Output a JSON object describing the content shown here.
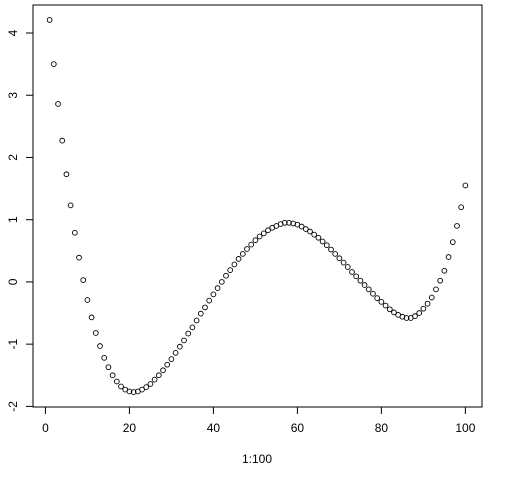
{
  "chart_data": {
    "type": "scatter",
    "xlabel": "1:100",
    "x": [
      1,
      2,
      3,
      4,
      5,
      6,
      7,
      8,
      9,
      10,
      11,
      12,
      13,
      14,
      15,
      16,
      17,
      18,
      19,
      20,
      21,
      22,
      23,
      24,
      25,
      26,
      27,
      28,
      29,
      30,
      31,
      32,
      33,
      34,
      35,
      36,
      37,
      38,
      39,
      40,
      41,
      42,
      43,
      44,
      45,
      46,
      47,
      48,
      49,
      50,
      51,
      52,
      53,
      54,
      55,
      56,
      57,
      58,
      59,
      60,
      61,
      62,
      63,
      64,
      65,
      66,
      67,
      68,
      69,
      70,
      71,
      72,
      73,
      74,
      75,
      76,
      77,
      78,
      79,
      80,
      81,
      82,
      83,
      84,
      85,
      86,
      87,
      88,
      89,
      90,
      91,
      92,
      93,
      94,
      95,
      96,
      97,
      98,
      99,
      100
    ],
    "values": [
      4.21,
      3.5,
      2.86,
      2.27,
      1.73,
      1.23,
      0.79,
      0.39,
      0.03,
      -0.29,
      -0.57,
      -0.82,
      -1.03,
      -1.22,
      -1.37,
      -1.5,
      -1.6,
      -1.68,
      -1.73,
      -1.76,
      -1.77,
      -1.76,
      -1.73,
      -1.69,
      -1.64,
      -1.57,
      -1.5,
      -1.42,
      -1.33,
      -1.24,
      -1.14,
      -1.04,
      -0.94,
      -0.83,
      -0.73,
      -0.62,
      -0.51,
      -0.41,
      -0.3,
      -0.2,
      -0.1,
      0.0,
      0.1,
      0.19,
      0.28,
      0.37,
      0.45,
      0.53,
      0.6,
      0.67,
      0.73,
      0.78,
      0.83,
      0.87,
      0.9,
      0.93,
      0.95,
      0.95,
      0.94,
      0.92,
      0.89,
      0.85,
      0.81,
      0.76,
      0.71,
      0.65,
      0.59,
      0.52,
      0.45,
      0.38,
      0.31,
      0.24,
      0.16,
      0.09,
      0.02,
      -0.05,
      -0.12,
      -0.19,
      -0.26,
      -0.32,
      -0.38,
      -0.44,
      -0.49,
      -0.53,
      -0.56,
      -0.58,
      -0.58,
      -0.55,
      -0.5,
      -0.43,
      -0.35,
      -0.25,
      -0.12,
      0.02,
      0.18,
      0.4,
      0.64,
      0.9,
      1.2,
      1.55
    ],
    "color": "#000000",
    "xlim": [
      -2.96,
      103.96
    ],
    "xticks": [
      0,
      20,
      40,
      60,
      80,
      100
    ],
    "ylim": [
      -2.01,
      4.45
    ],
    "yticks": [
      -2,
      -1,
      0,
      1,
      2,
      3,
      4
    ]
  }
}
